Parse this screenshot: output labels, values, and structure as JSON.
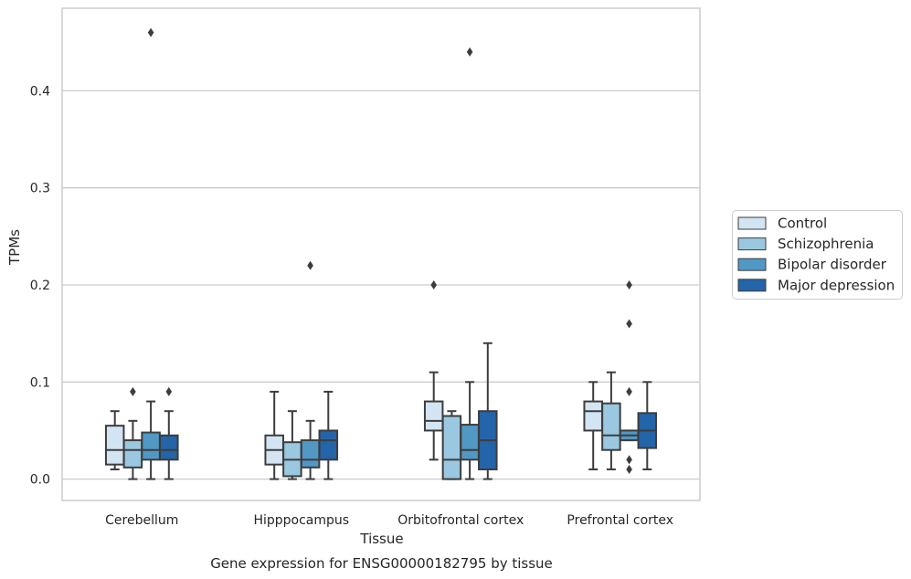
{
  "caption": "Gene expression for ENSG00000182795 by tissue",
  "chart_data": {
    "type": "box",
    "xlabel": "Tissue",
    "ylabel": "TPMs",
    "ylim": [
      -0.022,
      0.485
    ],
    "yticks": [
      0.0,
      0.1,
      0.2,
      0.3,
      0.4
    ],
    "ytick_labels": [
      "0.0",
      "0.1",
      "0.2",
      "0.3",
      "0.4"
    ],
    "grid": "horizontal",
    "legend_position": "right",
    "categories": [
      "Cerebellum",
      "Hipppocampus",
      "Orbitofrontal cortex",
      "Prefrontal cortex"
    ],
    "series": [
      {
        "name": "Control",
        "color": "#d3e4f3",
        "boxes": [
          {
            "whislo": 0.01,
            "q1": 0.015,
            "med": 0.03,
            "q3": 0.055,
            "whishi": 0.07,
            "fliers": []
          },
          {
            "whislo": 0.0,
            "q1": 0.015,
            "med": 0.03,
            "q3": 0.045,
            "whishi": 0.09,
            "fliers": []
          },
          {
            "whislo": 0.02,
            "q1": 0.05,
            "med": 0.06,
            "q3": 0.08,
            "whishi": 0.11,
            "fliers": [
              0.2
            ]
          },
          {
            "whislo": 0.01,
            "q1": 0.05,
            "med": 0.07,
            "q3": 0.08,
            "whishi": 0.1,
            "fliers": []
          }
        ]
      },
      {
        "name": "Schizophrenia",
        "color": "#9ac8e0",
        "boxes": [
          {
            "whislo": 0.0,
            "q1": 0.012,
            "med": 0.03,
            "q3": 0.04,
            "whishi": 0.06,
            "fliers": [
              0.09
            ]
          },
          {
            "whislo": 0.0,
            "q1": 0.003,
            "med": 0.02,
            "q3": 0.038,
            "whishi": 0.07,
            "fliers": []
          },
          {
            "whislo": 0.0,
            "q1": 0.0,
            "med": 0.02,
            "q3": 0.065,
            "whishi": 0.07,
            "fliers": []
          },
          {
            "whislo": 0.01,
            "q1": 0.03,
            "med": 0.045,
            "q3": 0.078,
            "whishi": 0.11,
            "fliers": []
          }
        ]
      },
      {
        "name": "Bipolar disorder",
        "color": "#5198c5",
        "boxes": [
          {
            "whislo": 0.0,
            "q1": 0.02,
            "med": 0.03,
            "q3": 0.048,
            "whishi": 0.08,
            "fliers": [
              0.46
            ]
          },
          {
            "whislo": 0.0,
            "q1": 0.012,
            "med": 0.02,
            "q3": 0.04,
            "whishi": 0.06,
            "fliers": [
              0.22
            ]
          },
          {
            "whislo": 0.0,
            "q1": 0.02,
            "med": 0.03,
            "q3": 0.056,
            "whishi": 0.1,
            "fliers": [
              0.44
            ]
          },
          {
            "whislo": 0.04,
            "q1": 0.04,
            "med": 0.045,
            "q3": 0.05,
            "whishi": 0.05,
            "fliers": [
              0.09,
              0.16,
              0.2,
              0.02,
              0.01
            ]
          }
        ]
      },
      {
        "name": "Major depression",
        "color": "#2464a8",
        "boxes": [
          {
            "whislo": 0.0,
            "q1": 0.02,
            "med": 0.03,
            "q3": 0.045,
            "whishi": 0.07,
            "fliers": [
              0.09
            ]
          },
          {
            "whislo": 0.0,
            "q1": 0.02,
            "med": 0.04,
            "q3": 0.05,
            "whishi": 0.09,
            "fliers": []
          },
          {
            "whislo": 0.0,
            "q1": 0.01,
            "med": 0.04,
            "q3": 0.07,
            "whishi": 0.14,
            "fliers": []
          },
          {
            "whislo": 0.01,
            "q1": 0.032,
            "med": 0.05,
            "q3": 0.068,
            "whishi": 0.1,
            "fliers": []
          }
        ]
      }
    ]
  }
}
